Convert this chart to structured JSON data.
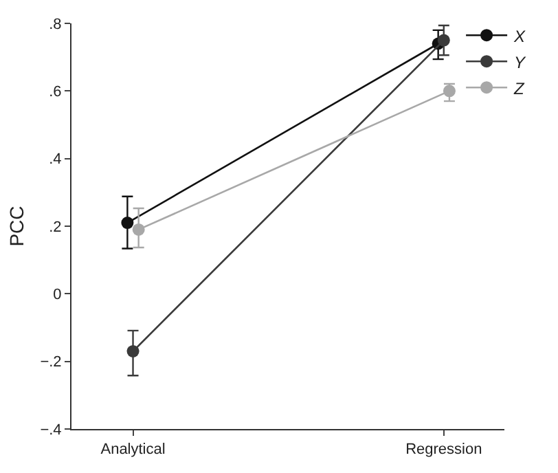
{
  "chart_data": {
    "type": "line",
    "ylabel": "PCC",
    "categories": [
      "Analytical",
      "Regression"
    ],
    "series": [
      {
        "name": "X",
        "color": "#111111",
        "values": [
          0.21,
          0.74
        ],
        "errors": [
          [
            0.134,
            0.288
          ],
          [
            0.694,
            0.78
          ]
        ]
      },
      {
        "name": "Y",
        "color": "#3a3a3a",
        "values": [
          -0.17,
          0.75
        ],
        "errors": [
          [
            -0.242,
            -0.109
          ],
          [
            0.706,
            0.794
          ]
        ]
      },
      {
        "name": "Z",
        "color": "#a8a8a8",
        "values": [
          0.19,
          0.6
        ],
        "errors": [
          [
            0.137,
            0.253
          ],
          [
            0.57,
            0.621
          ]
        ]
      }
    ],
    "ylim": [
      -0.4,
      0.8
    ],
    "yticks": [
      {
        "value": -0.4,
        "label": "−.4"
      },
      {
        "value": -0.2,
        "label": "−.2"
      },
      0,
      {
        "value": 0.2,
        "label": ".2"
      },
      {
        "value": 0.4,
        "label": ".4"
      },
      {
        "value": 0.6,
        "label": ".6"
      },
      {
        "value": 0.8,
        "label": ".8"
      }
    ],
    "marker": "circle",
    "line_style": "solid",
    "legend": "top right"
  }
}
